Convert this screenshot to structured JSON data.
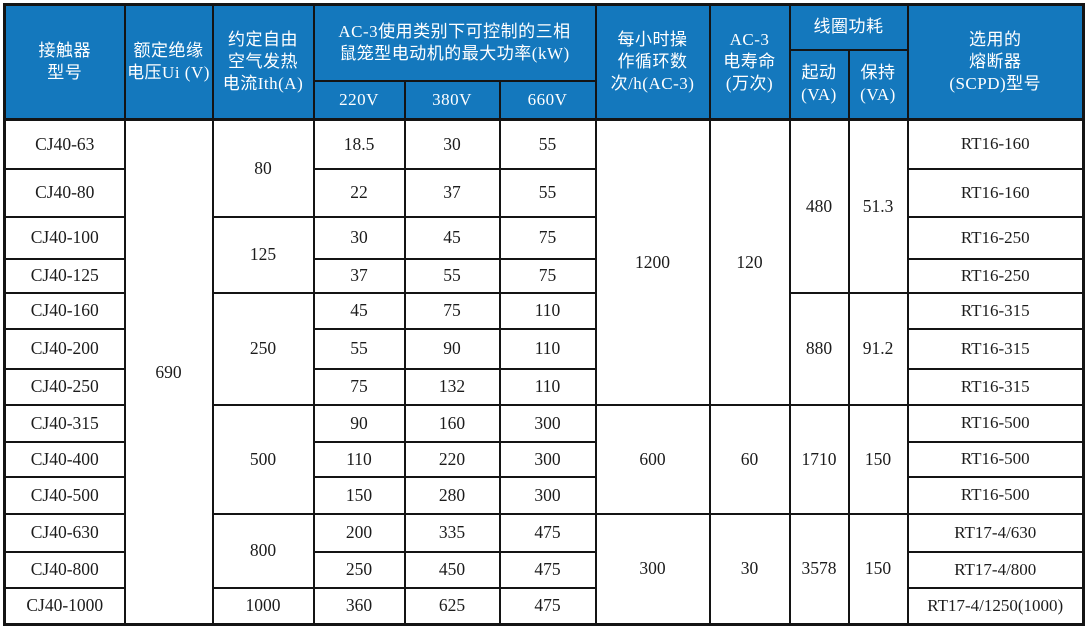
{
  "colors": {
    "header_bg": "#1478bd",
    "header_text": "#ffffff",
    "border": "#141414",
    "body_text": "#1c1c1c"
  },
  "table": {
    "header": {
      "model": "接触器\n型号",
      "insulation_voltage": "额定绝缘\n电压Ui (V)",
      "thermal_current": "约定自由\n空气发热\n电流Ith(A)",
      "ac3_power_group": "AC-3使用类别下可控制的三相\n鼠笼型电动机的最大功率(kW)",
      "v220": "220V",
      "v380": "380V",
      "v660": "660V",
      "cycles": "每小时操\n作循环数\n次/h(AC-3)",
      "ac3_life": "AC-3\n电寿命\n(万次)",
      "coil_power_group": "线圈功耗",
      "pickup": "起动\n(VA)",
      "holding": "保持\n(VA)",
      "fuse": "选用的\n熔断器\n(SCPD)型号"
    },
    "body": [
      [
        {
          "t": "CJ40-63",
          "name": "model"
        },
        {
          "t": "690",
          "rs": 13,
          "name": "rated-insulation-voltage"
        },
        {
          "t": "80",
          "rs": 2,
          "name": "thermal-current"
        },
        {
          "t": "18.5",
          "name": "power-220v"
        },
        {
          "t": "30",
          "name": "power-380v"
        },
        {
          "t": "55",
          "name": "power-660v"
        },
        {
          "t": "1200",
          "rs": 7,
          "name": "op-cycles"
        },
        {
          "t": "120",
          "rs": 7,
          "name": "ac3-life"
        },
        {
          "t": "480",
          "rs": 4,
          "name": "coil-pickup"
        },
        {
          "t": "51.3",
          "rs": 4,
          "name": "coil-holding"
        },
        {
          "t": "RT16-160",
          "name": "fuse-model"
        }
      ],
      [
        {
          "t": "CJ40-80",
          "name": "model"
        },
        {
          "t": "22",
          "name": "power-220v"
        },
        {
          "t": "37",
          "name": "power-380v"
        },
        {
          "t": "55",
          "name": "power-660v"
        },
        {
          "t": "RT16-160",
          "name": "fuse-model"
        }
      ],
      [
        {
          "t": "CJ40-100",
          "name": "model"
        },
        {
          "t": "125",
          "rs": 2,
          "name": "thermal-current"
        },
        {
          "t": "30",
          "name": "power-220v"
        },
        {
          "t": "45",
          "name": "power-380v"
        },
        {
          "t": "75",
          "name": "power-660v"
        },
        {
          "t": "RT16-250",
          "name": "fuse-model"
        }
      ],
      [
        {
          "t": "CJ40-125",
          "name": "model"
        },
        {
          "t": "37",
          "name": "power-220v"
        },
        {
          "t": "55",
          "name": "power-380v"
        },
        {
          "t": "75",
          "name": "power-660v"
        },
        {
          "t": "RT16-250",
          "name": "fuse-model"
        }
      ],
      [
        {
          "t": "CJ40-160",
          "name": "model"
        },
        {
          "t": "250",
          "rs": 3,
          "name": "thermal-current"
        },
        {
          "t": "45",
          "name": "power-220v"
        },
        {
          "t": "75",
          "name": "power-380v"
        },
        {
          "t": "110",
          "name": "power-660v"
        },
        {
          "t": "880",
          "rs": 3,
          "name": "coil-pickup"
        },
        {
          "t": "91.2",
          "rs": 3,
          "name": "coil-holding"
        },
        {
          "t": "RT16-315",
          "name": "fuse-model"
        }
      ],
      [
        {
          "t": "CJ40-200",
          "name": "model"
        },
        {
          "t": "55",
          "name": "power-220v"
        },
        {
          "t": "90",
          "name": "power-380v"
        },
        {
          "t": "110",
          "name": "power-660v"
        },
        {
          "t": "RT16-315",
          "name": "fuse-model"
        }
      ],
      [
        {
          "t": "CJ40-250",
          "name": "model"
        },
        {
          "t": "75",
          "name": "power-220v"
        },
        {
          "t": "132",
          "name": "power-380v"
        },
        {
          "t": "110",
          "name": "power-660v"
        },
        {
          "t": "RT16-315",
          "name": "fuse-model"
        }
      ],
      [
        {
          "t": "CJ40-315",
          "name": "model"
        },
        {
          "t": "500",
          "rs": 3,
          "name": "thermal-current"
        },
        {
          "t": "90",
          "name": "power-220v"
        },
        {
          "t": "160",
          "name": "power-380v"
        },
        {
          "t": "300",
          "name": "power-660v"
        },
        {
          "t": "600",
          "rs": 3,
          "name": "op-cycles"
        },
        {
          "t": "60",
          "rs": 3,
          "name": "ac3-life"
        },
        {
          "t": "1710",
          "rs": 3,
          "name": "coil-pickup"
        },
        {
          "t": "150",
          "rs": 3,
          "name": "coil-holding"
        },
        {
          "t": "RT16-500",
          "name": "fuse-model"
        }
      ],
      [
        {
          "t": "CJ40-400",
          "name": "model"
        },
        {
          "t": "110",
          "name": "power-220v"
        },
        {
          "t": "220",
          "name": "power-380v"
        },
        {
          "t": "300",
          "name": "power-660v"
        },
        {
          "t": "RT16-500",
          "name": "fuse-model"
        }
      ],
      [
        {
          "t": "CJ40-500",
          "name": "model"
        },
        {
          "t": "150",
          "name": "power-220v"
        },
        {
          "t": "280",
          "name": "power-380v"
        },
        {
          "t": "300",
          "name": "power-660v"
        },
        {
          "t": "RT16-500",
          "name": "fuse-model"
        }
      ],
      [
        {
          "t": "CJ40-630",
          "name": "model"
        },
        {
          "t": "800",
          "rs": 2,
          "name": "thermal-current"
        },
        {
          "t": "200",
          "name": "power-220v"
        },
        {
          "t": "335",
          "name": "power-380v"
        },
        {
          "t": "475",
          "name": "power-660v"
        },
        {
          "t": "300",
          "rs": 3,
          "name": "op-cycles"
        },
        {
          "t": "30",
          "rs": 3,
          "name": "ac3-life"
        },
        {
          "t": "3578",
          "rs": 3,
          "name": "coil-pickup"
        },
        {
          "t": "150",
          "rs": 3,
          "name": "coil-holding"
        },
        {
          "t": "RT17-4/630",
          "name": "fuse-model"
        }
      ],
      [
        {
          "t": "CJ40-800",
          "name": "model"
        },
        {
          "t": "250",
          "name": "power-220v"
        },
        {
          "t": "450",
          "name": "power-380v"
        },
        {
          "t": "475",
          "name": "power-660v"
        },
        {
          "t": "RT17-4/800",
          "name": "fuse-model"
        }
      ],
      [
        {
          "t": "CJ40-1000",
          "name": "model"
        },
        {
          "t": "1000",
          "name": "thermal-current"
        },
        {
          "t": "360",
          "name": "power-220v"
        },
        {
          "t": "625",
          "name": "power-380v"
        },
        {
          "t": "475",
          "name": "power-660v"
        },
        {
          "t": "RT17-4/1250(1000)",
          "name": "fuse-model"
        }
      ]
    ]
  }
}
